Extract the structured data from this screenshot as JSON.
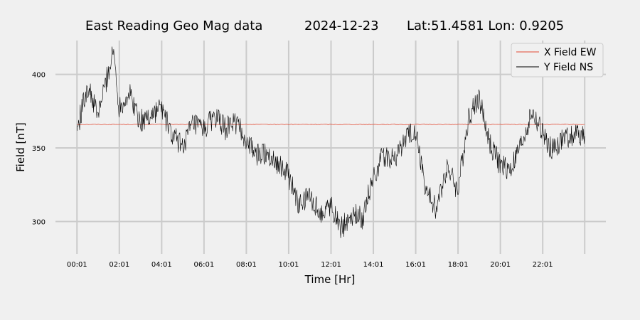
{
  "title_parts": {
    "main": "East Reading Geo Mag data",
    "date": "2024-12-23",
    "coords": "Lat:51.4581  Lon: 0.9205"
  },
  "colors": {
    "background": "#f0f0f0",
    "grid": "#cbcbcb",
    "x_series": "#e24a33",
    "y_series": "#000000"
  },
  "chart_data": {
    "type": "line",
    "xlabel": "Time  [Hr]",
    "ylabel": "Field  [nT]",
    "xlim": [
      "23:00",
      "25:00"
    ],
    "ylim": [
      278,
      423
    ],
    "grid": true,
    "legend_position": "top-right",
    "x_ticks": [
      "00:01",
      "02:01",
      "04:01",
      "06:01",
      "08:01",
      "10:01",
      "12:01",
      "14:01",
      "16:01",
      "18:01",
      "20:01",
      "22:01"
    ],
    "y_ticks": [
      300,
      350,
      400
    ],
    "series": [
      {
        "name": "X Field EW",
        "color": "#e24a33",
        "x": [
          "00:01",
          "02:01",
          "04:01",
          "06:01",
          "08:01",
          "10:01",
          "12:01",
          "14:01",
          "16:01",
          "18:01",
          "20:01",
          "22:01",
          "24:00"
        ],
        "values": [
          366,
          366,
          366,
          366,
          366,
          366,
          366,
          366,
          366,
          366,
          366,
          366,
          366
        ]
      },
      {
        "name": "Y Field NS",
        "color": "#000000",
        "x": [
          "00:01",
          "00:30",
          "01:00",
          "01:30",
          "01:45",
          "02:00",
          "02:30",
          "03:00",
          "03:30",
          "04:00",
          "04:30",
          "05:00",
          "05:30",
          "06:00",
          "06:30",
          "07:00",
          "07:30",
          "08:00",
          "08:30",
          "09:00",
          "09:30",
          "10:00",
          "10:30",
          "11:00",
          "11:30",
          "12:00",
          "12:30",
          "13:00",
          "13:30",
          "14:00",
          "14:30",
          "15:00",
          "15:30",
          "16:00",
          "16:30",
          "17:00",
          "17:30",
          "18:00",
          "18:30",
          "19:00",
          "19:30",
          "20:00",
          "20:30",
          "21:00",
          "21:30",
          "22:00",
          "22:30",
          "23:00",
          "23:30",
          "24:00"
        ],
        "values": [
          362,
          392,
          372,
          402,
          416,
          378,
          387,
          368,
          372,
          378,
          358,
          352,
          366,
          362,
          372,
          363,
          368,
          355,
          345,
          347,
          340,
          331,
          310,
          318,
          305,
          312,
          295,
          305,
          302,
          330,
          345,
          342,
          355,
          363,
          320,
          308,
          338,
          320,
          370,
          384,
          354,
          338,
          335,
          352,
          374,
          360,
          348,
          356,
          360,
          358
        ]
      }
    ]
  }
}
